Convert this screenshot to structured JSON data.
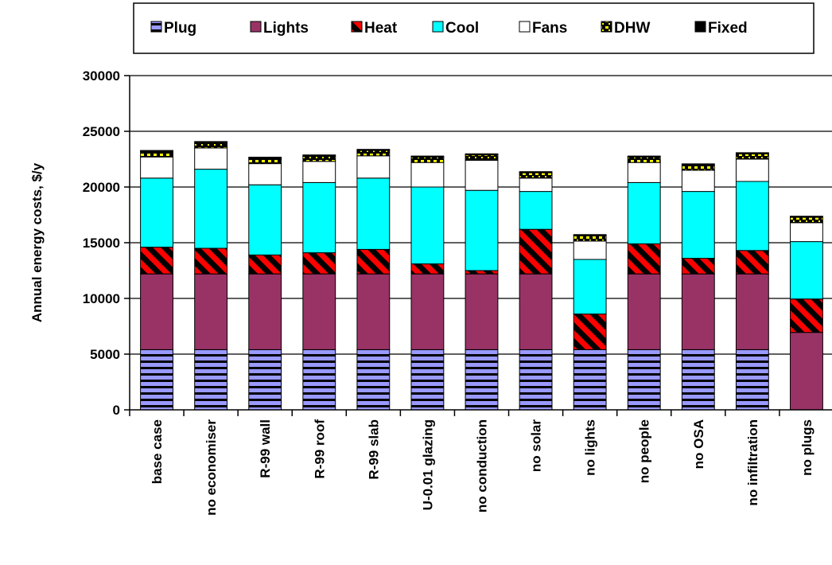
{
  "chart_data": {
    "type": "bar",
    "stacked": true,
    "categories": [
      "base case",
      "no economiser",
      "R-99 wall",
      "R-99 roof",
      "R-99 slab",
      "U-0.01 glazing",
      "no conduction",
      "no solar",
      "no lights",
      "no people",
      "no OSA",
      "no infiltration",
      "no plugs"
    ],
    "series": [
      {
        "name": "Plug",
        "color": "#9999ff",
        "pattern": "horizontal-stripes",
        "values": [
          5400,
          5400,
          5400,
          5400,
          5400,
          5400,
          5400,
          5400,
          5400,
          5400,
          5400,
          5400,
          0
        ]
      },
      {
        "name": "Lights",
        "color": "#993366",
        "pattern": "solid",
        "values": [
          6800,
          6800,
          6800,
          6800,
          6800,
          6800,
          6800,
          6800,
          0,
          6800,
          6800,
          6800,
          6950
        ]
      },
      {
        "name": "Heat",
        "color": "#ff0000",
        "pattern": "diagonal-stripes",
        "values": [
          2400,
          2300,
          1700,
          1900,
          2200,
          900,
          300,
          4000,
          3200,
          2700,
          1400,
          2100,
          3000
        ]
      },
      {
        "name": "Cool",
        "color": "#00ffff",
        "pattern": "solid",
        "values": [
          6200,
          7100,
          6300,
          6300,
          6400,
          6900,
          7200,
          3400,
          4900,
          5500,
          6000,
          6200,
          5150
        ]
      },
      {
        "name": "Fans",
        "color": "#ffffff",
        "pattern": "solid",
        "values": [
          1900,
          1900,
          1900,
          1900,
          2000,
          2200,
          2700,
          1200,
          1650,
          1800,
          1900,
          2000,
          1700
        ]
      },
      {
        "name": "DHW",
        "color": "#ffff00",
        "pattern": "yellow-dots",
        "values": [
          480,
          480,
          480,
          480,
          480,
          480,
          480,
          480,
          480,
          480,
          480,
          480,
          480
        ]
      },
      {
        "name": "Fixed",
        "color": "#000000",
        "pattern": "solid",
        "values": [
          100,
          100,
          100,
          100,
          100,
          100,
          100,
          100,
          100,
          100,
          100,
          100,
          100
        ]
      }
    ],
    "ylabel": "Annual energy costs, $/y",
    "xlabel": "",
    "ylim": [
      0,
      30000
    ],
    "yticks": [
      "0",
      "5000",
      "10000",
      "15000",
      "20000",
      "25000",
      "30000"
    ],
    "gridlines": true,
    "legend_position": "top"
  }
}
